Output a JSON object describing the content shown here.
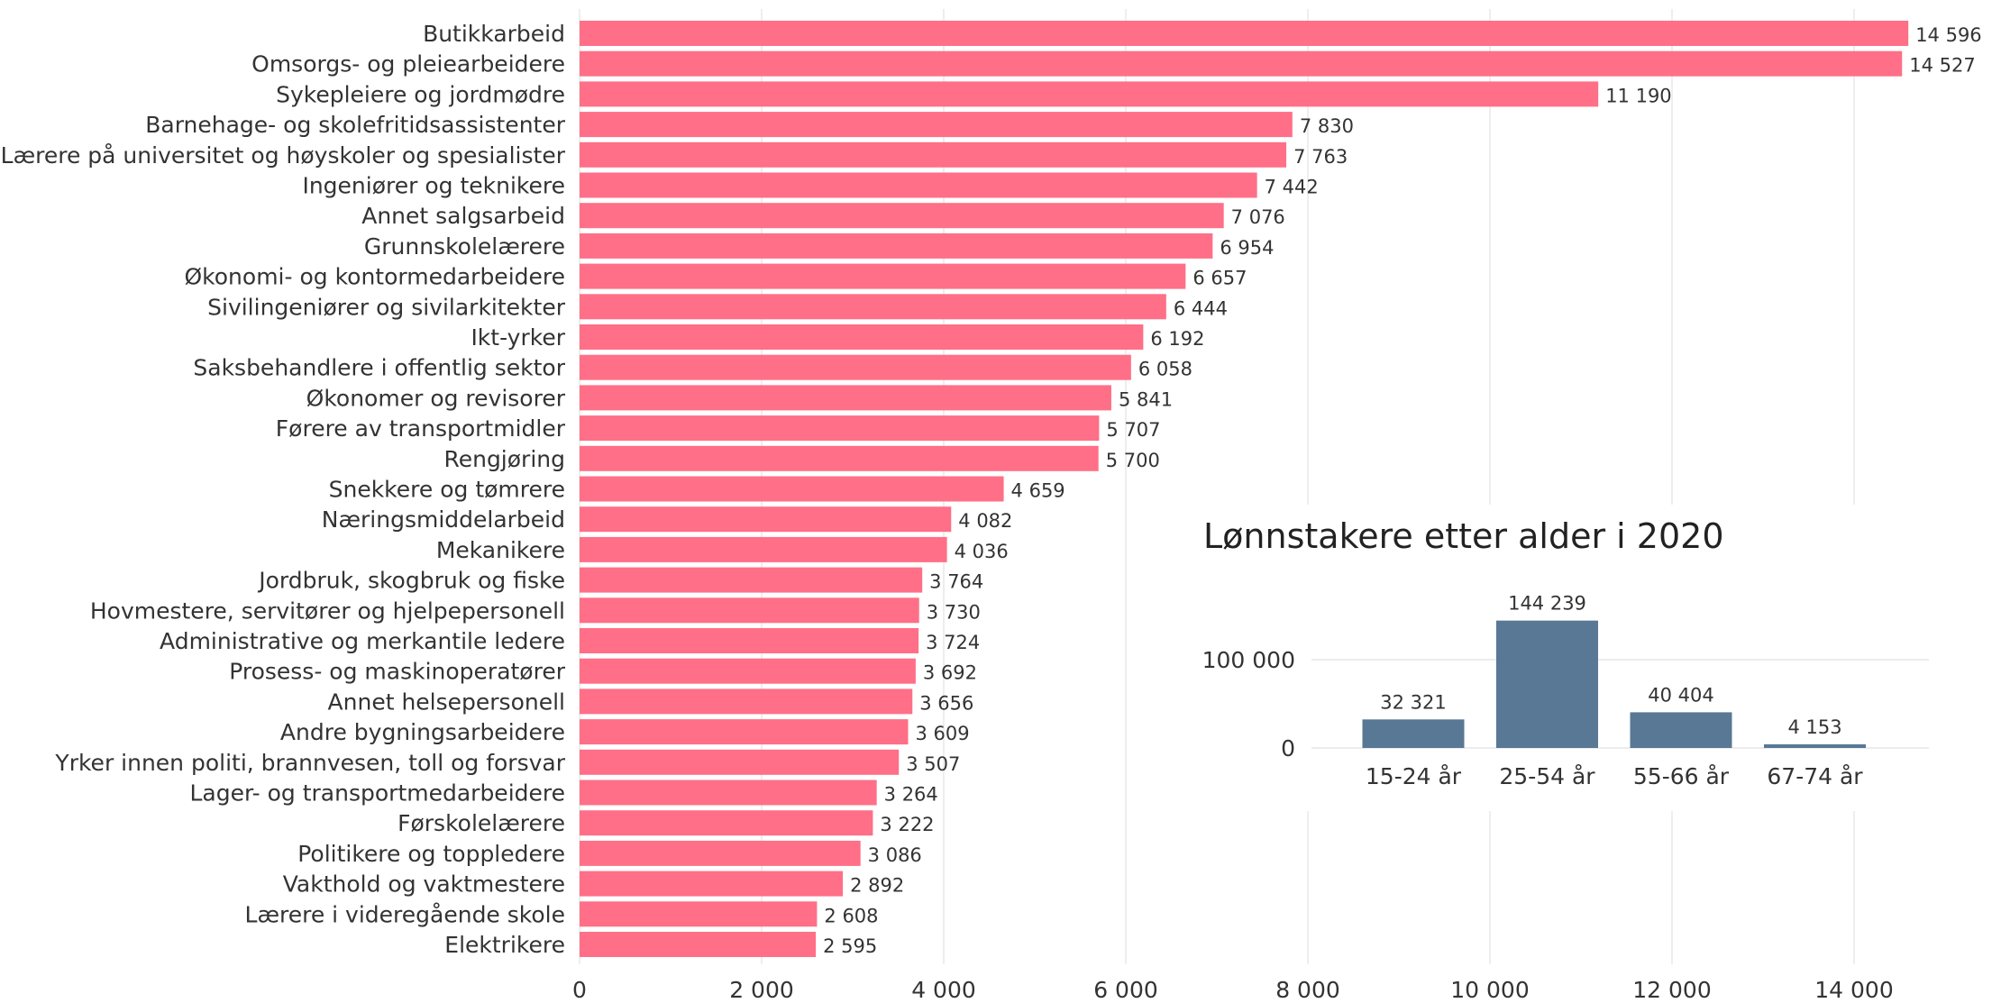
{
  "chart_data": [
    {
      "type": "bar",
      "orientation": "horizontal",
      "title": "",
      "xlabel": "",
      "ylabel": "",
      "xlim": [
        0,
        15000
      ],
      "xticks": [
        0,
        2000,
        4000,
        6000,
        8000,
        10000,
        12000,
        14000
      ],
      "xtick_labels": [
        "0",
        "2 000",
        "4 000",
        "6 000",
        "8 000",
        "10 000",
        "12 000",
        "14 000"
      ],
      "grid": "vertical",
      "bar_color": "#FF6F87",
      "categories": [
        "Butikkarbeid",
        "Omsorgs- og pleiearbeidere",
        "Sykepleiere og jordmødre",
        "Barnehage- og skolefritidsassistenter",
        "Lærere på universitet og høyskoler og spesialister",
        "Ingeniører og teknikere",
        "Annet salgsarbeid",
        "Grunnskolelærere",
        "Økonomi- og kontormedarbeidere",
        "Sivilingeniører og sivilarkitekter",
        "Ikt-yrker",
        "Saksbehandlere i offentlig sektor",
        "Økonomer og revisorer",
        "Førere av transportmidler",
        "Rengjøring",
        "Snekkere og tømrere",
        "Næringsmiddelarbeid",
        "Mekanikere",
        "Jordbruk, skogbruk og fiske",
        "Hovmestere, servitører og hjelpepersonell",
        "Administrative og merkantile ledere",
        "Prosess- og maskinoperatører",
        "Annet helsepersonell",
        "Andre bygningsarbeidere",
        "Yrker innen politi, brannvesen, toll og forsvar",
        "Lager- og transportmedarbeidere",
        "Førskolelærere",
        "Politikere og toppledere",
        "Vakthold og vaktmestere",
        "Lærere i videregående skole",
        "Elektrikere"
      ],
      "values": [
        14596,
        14527,
        11190,
        7830,
        7763,
        7442,
        7076,
        6954,
        6657,
        6444,
        6192,
        6058,
        5841,
        5707,
        5700,
        4659,
        4082,
        4036,
        3764,
        3730,
        3724,
        3692,
        3656,
        3609,
        3507,
        3264,
        3222,
        3086,
        2892,
        2608,
        2595
      ],
      "value_labels": [
        "14 596",
        "14 527",
        "11 190",
        "7 830",
        "7 763",
        "7 442",
        "7 076",
        "6 954",
        "6 657",
        "6 444",
        "6 192",
        "6 058",
        "5 841",
        "5 707",
        "5 700",
        "4 659",
        "4 082",
        "4 036",
        "3 764",
        "3 730",
        "3 724",
        "3 692",
        "3 656",
        "3 609",
        "3 507",
        "3 264",
        "3 222",
        "3 086",
        "2 892",
        "2 608",
        "2 595"
      ]
    },
    {
      "type": "bar",
      "orientation": "vertical",
      "title": "Lønnstakere etter alder i 2020",
      "xlabel": "",
      "ylabel": "",
      "ylim": [
        0,
        150000
      ],
      "yticks": [
        0,
        100000
      ],
      "ytick_labels": [
        "0",
        "100 000"
      ],
      "grid": "horizontal",
      "bar_color": "#587895",
      "categories": [
        "15-24 år",
        "25-54 år",
        "55-66 år",
        "67-74 år"
      ],
      "values": [
        32321,
        144239,
        40404,
        4153
      ],
      "value_labels": [
        "32 321",
        "144 239",
        "40 404",
        "4 153"
      ]
    }
  ]
}
